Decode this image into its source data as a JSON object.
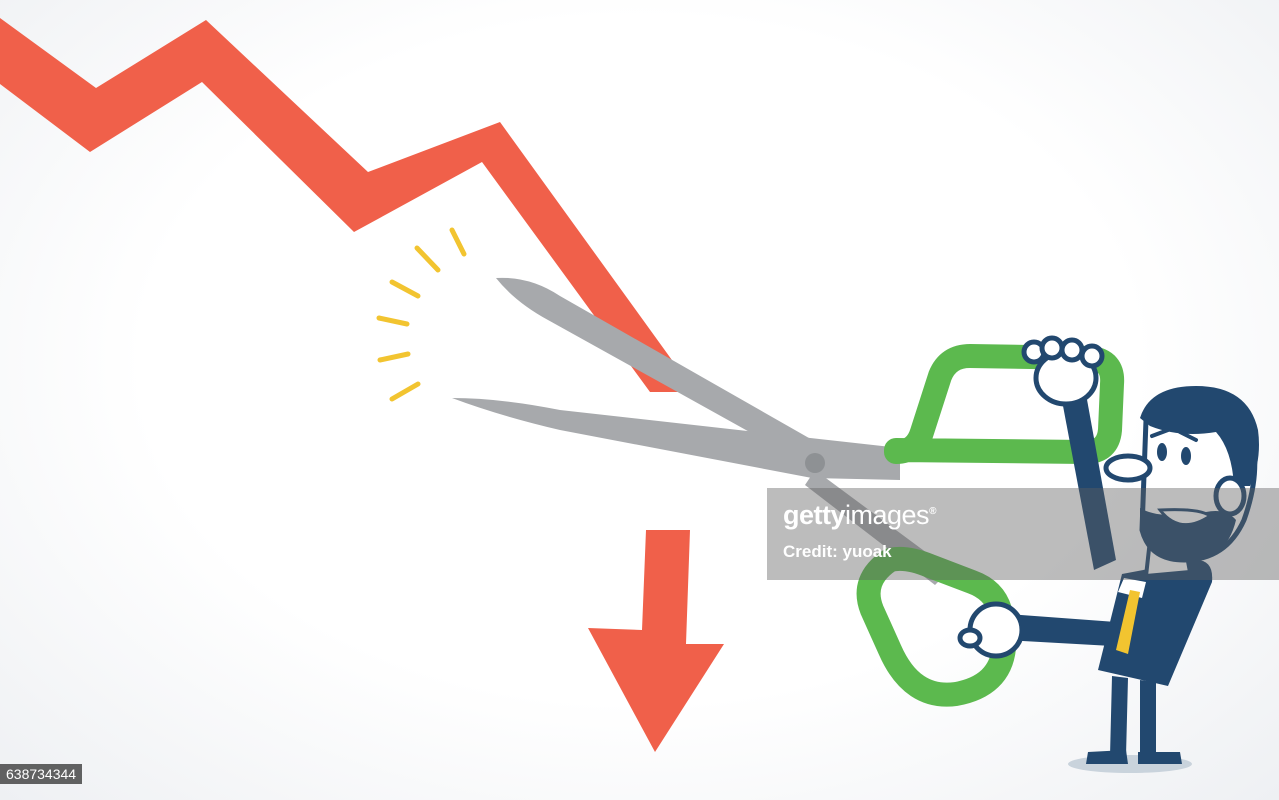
{
  "scene": {
    "subject": "businessman-cutting-declining-chart-line-with-scissors",
    "colors": {
      "chart_line": "#F0604A",
      "arrow": "#F0604A",
      "scissor_blade": "#A7A9AC",
      "scissor_handle": "#5CB94E",
      "suit": "#22486F",
      "skin": "#FFFFFF",
      "tie": "#F2C430",
      "spark": "#F2C430",
      "shadow": "#C9D3DC"
    }
  },
  "watermark": {
    "brand_bold": "getty",
    "brand_thin": "images",
    "registered_mark": "®",
    "credit": "Credit: yuoak"
  },
  "image_id": "638734344"
}
